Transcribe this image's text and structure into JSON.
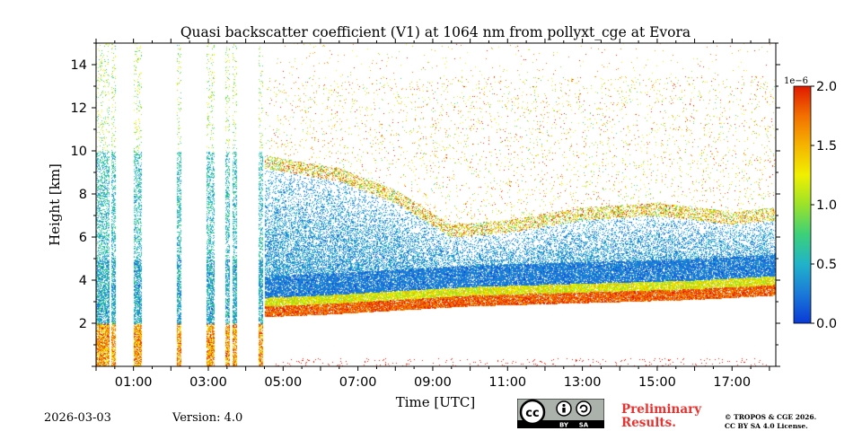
{
  "chart_data": {
    "type": "heatmap",
    "title": "Quasi backscatter coefficient (V1) at 1064 nm from pollyxt_cge at Evora",
    "xlabel": "Time [UTC]",
    "ylabel": "Height [km]",
    "xlim": [
      0,
      18.17
    ],
    "ylim": [
      0,
      15
    ],
    "x_ticks": [
      {
        "value": 1,
        "label": "01:00"
      },
      {
        "value": 3,
        "label": "03:00"
      },
      {
        "value": 5,
        "label": "05:00"
      },
      {
        "value": 7,
        "label": "07:00"
      },
      {
        "value": 9,
        "label": "09:00"
      },
      {
        "value": 11,
        "label": "11:00"
      },
      {
        "value": 13,
        "label": "13:00"
      },
      {
        "value": 15,
        "label": "15:00"
      },
      {
        "value": 17,
        "label": "17:00"
      }
    ],
    "y_ticks": [
      {
        "value": 2,
        "label": "2"
      },
      {
        "value": 4,
        "label": "4"
      },
      {
        "value": 6,
        "label": "6"
      },
      {
        "value": 8,
        "label": "8"
      },
      {
        "value": 10,
        "label": "10"
      },
      {
        "value": 12,
        "label": "12"
      },
      {
        "value": 14,
        "label": "14"
      }
    ],
    "colorbar": {
      "range": [
        0.0,
        2.0
      ],
      "multiplier_label": "1e−6",
      "ticks": [
        {
          "value": 0.0,
          "label": "0.0"
        },
        {
          "value": 0.5,
          "label": "0.5"
        },
        {
          "value": 1.0,
          "label": "1.0"
        },
        {
          "value": 1.5,
          "label": "1.5"
        },
        {
          "value": 2.0,
          "label": "2.0"
        }
      ],
      "colors": [
        "#0a3ad6",
        "#1a7ad8",
        "#21b3c9",
        "#3cd07a",
        "#9be22a",
        "#f0f000",
        "#f5b400",
        "#f27000",
        "#e01a00"
      ]
    },
    "features": {
      "boundary_layer_top_km": [
        {
          "time": 4.5,
          "height": 3.2
        },
        {
          "time": 6,
          "height": 3.3
        },
        {
          "time": 8,
          "height": 3.5
        },
        {
          "time": 10,
          "height": 3.7
        },
        {
          "time": 12,
          "height": 3.8
        },
        {
          "time": 14,
          "height": 3.9
        },
        {
          "time": 16,
          "height": 4.0
        },
        {
          "time": 18.17,
          "height": 4.2
        }
      ],
      "cloud_layer_km": [
        {
          "time": 4.5,
          "height": 9.2
        },
        {
          "time": 6.5,
          "height": 8.6
        },
        {
          "time": 8,
          "height": 7.6
        },
        {
          "time": 9.5,
          "height": 6.0
        },
        {
          "time": 11,
          "height": 6.2
        },
        {
          "time": 13,
          "height": 6.8
        },
        {
          "time": 15,
          "height": 7.0
        },
        {
          "time": 17,
          "height": 6.6
        },
        {
          "time": 18.17,
          "height": 6.8
        }
      ],
      "vertical_profiles_night": [
        0.15,
        0.3,
        0.45,
        1.05,
        1.15,
        2.2,
        3.0,
        3.1,
        3.5,
        3.7,
        4.4,
        4.6,
        4.75
      ]
    }
  },
  "footer": {
    "date": "2026-03-03",
    "version": "Version: 4.0",
    "preliminary_line1": "Preliminary",
    "preliminary_line2": "Results.",
    "copyright_line1": "© TROPOS & CGE 2026.",
    "copyright_line2": "CC BY SA 4.0 License.",
    "cc_labels": {
      "by": "BY",
      "sa": "SA",
      "cc": "cc"
    }
  }
}
